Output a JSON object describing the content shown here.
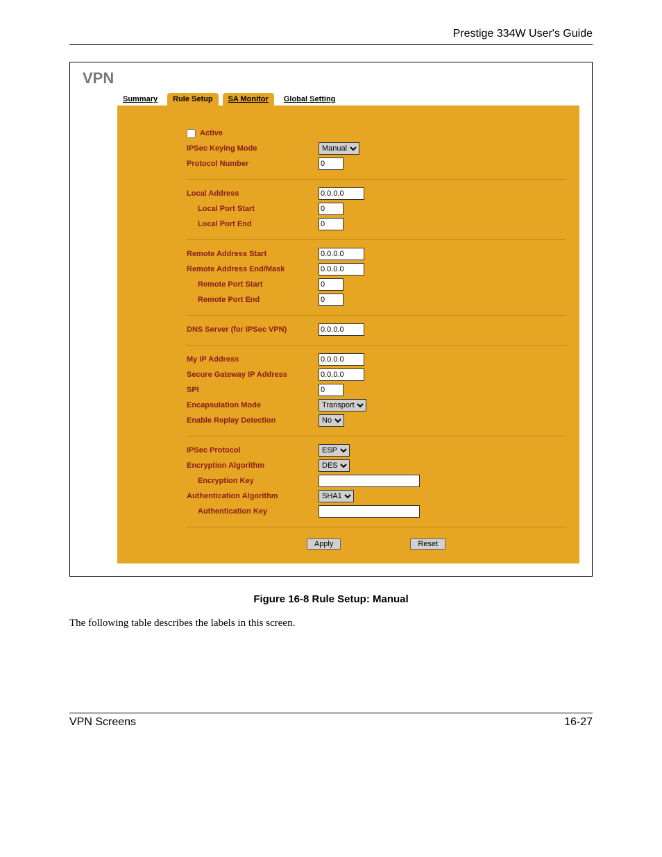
{
  "doc": {
    "header": "Prestige 334W User's Guide",
    "footer_left": "VPN Screens",
    "footer_right": "16-27",
    "caption": "Figure 16-8 Rule Setup: Manual",
    "body_text": "The following table describes the labels in this screen."
  },
  "screenshot": {
    "title": "VPN",
    "bg_color": "#e6a522",
    "label_color": "#8a1a1a",
    "tabs": [
      {
        "label": "Summary",
        "active": false,
        "underline": true
      },
      {
        "label": "Rule Setup",
        "active": true,
        "underline": false
      },
      {
        "label": "SA Monitor",
        "active": true,
        "underline": true
      },
      {
        "label": "Global Setting",
        "active": false,
        "underline": true
      }
    ],
    "fields": {
      "active_label": "Active",
      "active_checked": false,
      "ipsec_keying_mode_label": "IPSec Keying Mode",
      "ipsec_keying_mode_value": "Manual",
      "protocol_number_label": "Protocol Number",
      "protocol_number_value": "0",
      "local_address_label": "Local Address",
      "local_address_value": "0.0.0.0",
      "local_port_start_label": "Local Port Start",
      "local_port_start_value": "0",
      "local_port_end_label": "Local Port End",
      "local_port_end_value": "0",
      "remote_address_start_label": "Remote Address Start",
      "remote_address_start_value": "0.0.0.0",
      "remote_address_end_label": "Remote Address End/Mask",
      "remote_address_end_value": "0.0.0.0",
      "remote_port_start_label": "Remote Port Start",
      "remote_port_start_value": "0",
      "remote_port_end_label": "Remote Port End",
      "remote_port_end_value": "0",
      "dns_server_label": "DNS Server (for IPSec VPN)",
      "dns_server_value": "0.0.0.0",
      "my_ip_label": "My IP Address",
      "my_ip_value": "0.0.0.0",
      "secure_gw_label": "Secure Gateway IP Address",
      "secure_gw_value": "0.0.0.0",
      "spi_label": "SPI",
      "spi_value": "0",
      "encap_mode_label": "Encapsulation Mode",
      "encap_mode_value": "Transport",
      "replay_label": "Enable Replay Detection",
      "replay_value": "No",
      "ipsec_protocol_label": "IPSec Protocol",
      "ipsec_protocol_value": "ESP",
      "enc_alg_label": "Encryption Algorithm",
      "enc_alg_value": "DES",
      "enc_key_label": "Encryption Key",
      "enc_key_value": "",
      "auth_alg_label": "Authentication Algorithm",
      "auth_alg_value": "SHA1",
      "auth_key_label": "Authentication Key",
      "auth_key_value": ""
    },
    "buttons": {
      "apply": "Apply",
      "reset": "Reset"
    }
  }
}
